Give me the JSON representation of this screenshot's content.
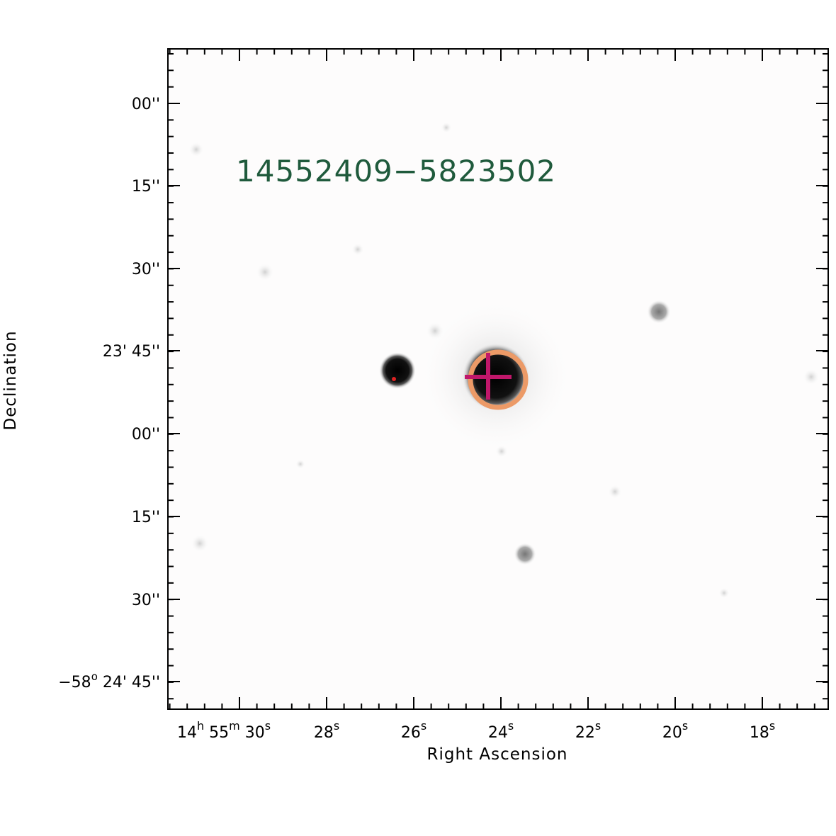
{
  "object_id": "14552409−5823502",
  "colors": {
    "id_label": "#1f5a3c",
    "aperture_circle": "#ec9a67",
    "crosshair": "#c0176a",
    "star_core": "#101010"
  },
  "axes": {
    "x_title": "Right Ascension",
    "y_title": "Declination",
    "x_ticks": [
      {
        "h": "14",
        "h_unit": "h",
        "m": "55",
        "m_unit": "m",
        "s": "30",
        "s_unit": "s"
      },
      {
        "s": "28",
        "s_unit": "s"
      },
      {
        "s": "26",
        "s_unit": "s"
      },
      {
        "s": "24",
        "s_unit": "s"
      },
      {
        "s": "22",
        "s_unit": "s"
      },
      {
        "s": "20",
        "s_unit": "s"
      },
      {
        "s": "18",
        "s_unit": "s"
      }
    ],
    "y_ticks": [
      {
        "text": "00''"
      },
      {
        "text": "15''"
      },
      {
        "text": "30''"
      },
      {
        "text": "23' 45''"
      },
      {
        "text": "00''"
      },
      {
        "text": "15''"
      },
      {
        "text": "30''"
      },
      {
        "deg": "−58",
        "deg_unit": "o",
        "rest": "24' 45''"
      }
    ]
  }
}
